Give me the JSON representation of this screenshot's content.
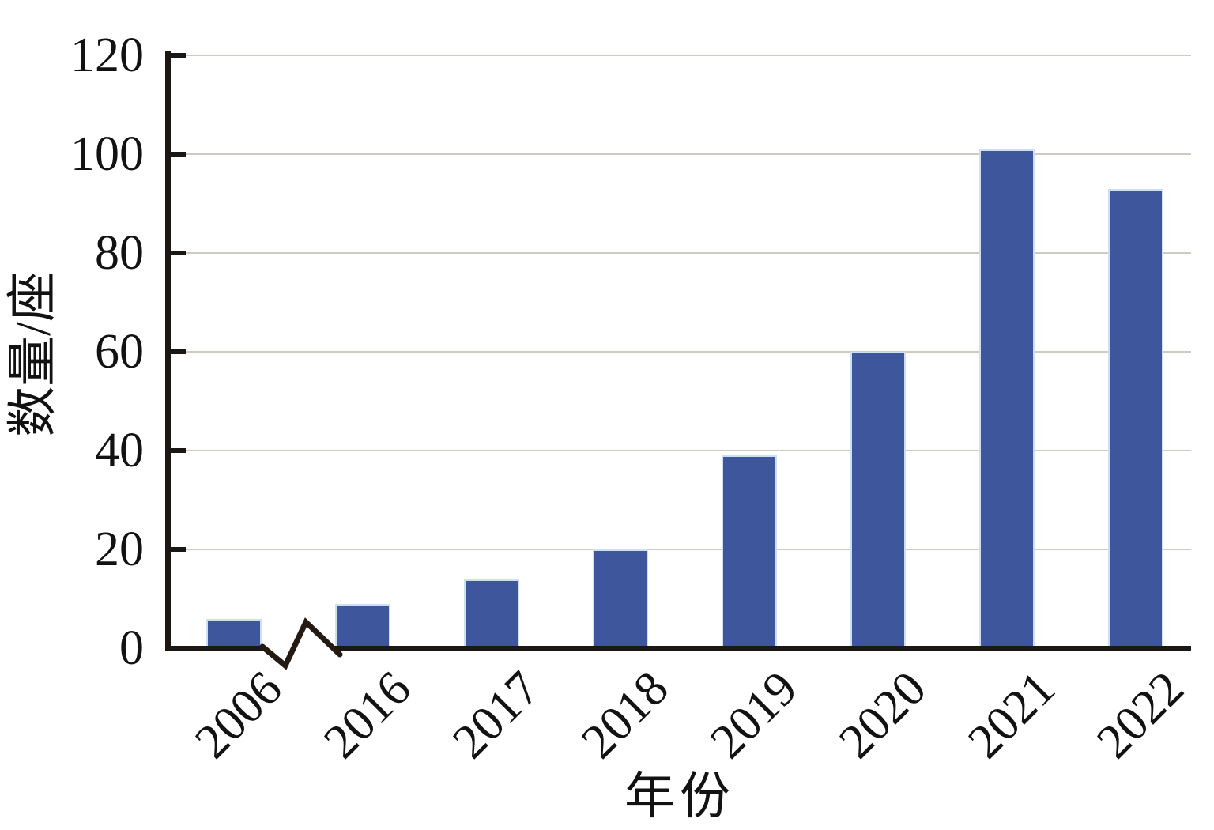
{
  "chart_data": {
    "type": "bar",
    "categories": [
      "2006",
      "2016",
      "2017",
      "2018",
      "2019",
      "2020",
      "2021",
      "2022"
    ],
    "values": [
      6,
      9,
      14,
      20,
      39,
      60,
      101,
      93
    ],
    "title": "",
    "xlabel": "年份",
    "ylabel": "数量/座",
    "ylim": [
      0,
      120
    ],
    "yticks": [
      0,
      20,
      40,
      60,
      80,
      100,
      120
    ],
    "grid": "horizontal gridlines at each y tick, no vertical grid",
    "legend": "none",
    "axis_break": {
      "axis": "x",
      "between": [
        "2006",
        "2016"
      ],
      "symbol": "zigzag"
    },
    "colors": {
      "bar_fill": "#3E569B",
      "bar_edge": "#CEDFF2",
      "gridline": "#CFC9C4",
      "axis": "#1A1714",
      "text": "#121212",
      "break_line": "#241A12",
      "background": "#FFFFFF"
    }
  }
}
